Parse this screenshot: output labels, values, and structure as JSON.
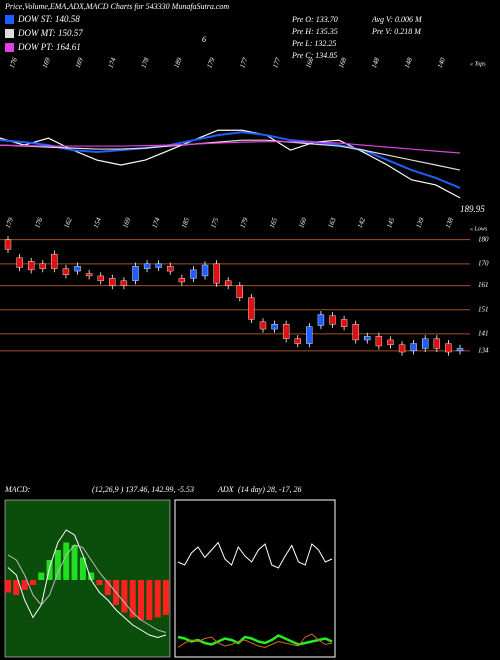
{
  "header": {
    "title": "Price,Volume,EMA,ADX,MACD Charts for 543330 MunafaSutra.com",
    "stats": [
      "Pre   O: 133.70",
      "Pre   H: 135.35",
      "Pre   L: 132.25",
      "Pre   C: 134.85",
      "Avg  V: 0.006  M",
      "Pre  V: 0.218 M"
    ],
    "marker": "6"
  },
  "chart_data": [
    {
      "type": "line",
      "ylim": [
        125,
        235
      ],
      "series": [
        {
          "color": "#ffffff",
          "values": [
            177.7,
            172.6,
            177.7,
            169,
            161.6,
            158,
            161.6,
            168.9,
            176.2,
            183.5,
            183.5,
            179.9,
            168.9,
            174.8,
            176.2,
            167.5,
            158,
            147.1,
            143.4,
            133.9
          ]
        },
        {
          "name": "DOW ST: 140.58",
          "color": "#1f5fff",
          "values": [
            176.2,
            174.8,
            172.6,
            168.9,
            167.5,
            168.9,
            170.4,
            172.6,
            176.2,
            179.9,
            182.1,
            179.9,
            176.2,
            174.8,
            172.6,
            168.9,
            161.6,
            154.3,
            148.5,
            141.2
          ]
        },
        {
          "name": "DOW MT: 150.57",
          "color": "#dddddd",
          "values": [
            172.6,
            171.9,
            171.1,
            170.4,
            169.7,
            169.7,
            170.4,
            171.9,
            173.3,
            174.8,
            176.2,
            176.2,
            174.8,
            173.3,
            171.9,
            168.9,
            165.3,
            161.6,
            158,
            154.3
          ]
        },
        {
          "name": "DOW PT: 164.61",
          "color": "#e040e0",
          "values": [
            172.6,
            172.2,
            171.9,
            171.9,
            171.9,
            171.9,
            172.2,
            172.6,
            173.3,
            174.1,
            174.8,
            175.1,
            175.1,
            174.8,
            174.1,
            172.6,
            171.1,
            169.7,
            168.2,
            166.8
          ]
        }
      ],
      "tops": [
        176,
        169,
        169,
        174,
        178,
        189,
        179,
        177,
        177,
        166,
        168,
        148,
        148,
        140
      ],
      "tops_label": "« Tops",
      "lows": [
        179,
        176,
        162,
        154,
        169,
        174,
        185,
        175,
        179,
        165,
        160,
        163,
        142,
        145,
        139,
        138
      ],
      "lows_label": "« Lows",
      "annotation": "189.95"
    },
    {
      "type": "candlestick",
      "ylim": [
        124,
        184
      ],
      "yticks": [
        180,
        170,
        161,
        151,
        141,
        134
      ],
      "up_color": "#1f5fff",
      "down_color": "#e01010",
      "grid_color": "#a0522d",
      "open": [
        180,
        172.5,
        171,
        170,
        174,
        168,
        167,
        166,
        165,
        164,
        163,
        163,
        168,
        168.5,
        169,
        164,
        164,
        165,
        170,
        163,
        161,
        156,
        146,
        143,
        145,
        139,
        137,
        144.5,
        148.5,
        147,
        145,
        138.5,
        140,
        138.5,
        136.5,
        134,
        135,
        139,
        137,
        134
      ],
      "close": [
        176,
        168.5,
        167.5,
        168,
        168,
        165.5,
        169,
        165,
        163,
        161,
        161,
        169,
        170,
        170,
        167,
        162.5,
        167.5,
        169.5,
        162,
        161,
        156,
        147,
        143,
        145,
        139,
        137,
        144,
        149,
        145,
        144,
        138.5,
        140,
        136,
        136.5,
        133.5,
        137,
        139,
        135,
        133.5,
        135
      ],
      "high": [
        181.5,
        174,
        172.5,
        171.5,
        175.5,
        169.5,
        170.5,
        167.5,
        166.5,
        165.5,
        164.5,
        170.5,
        171.5,
        171.5,
        170.5,
        165.5,
        169,
        171,
        171.5,
        164.5,
        162.5,
        157.5,
        147.5,
        146.5,
        146.5,
        140.5,
        145.5,
        150.5,
        150,
        148.5,
        146.5,
        141.5,
        141.5,
        140,
        138,
        138.5,
        140.5,
        140.5,
        138.5,
        136.5
      ],
      "low": [
        174.5,
        167,
        166,
        166.5,
        166.5,
        164,
        165.5,
        163.5,
        161.5,
        159.5,
        159.5,
        161.5,
        166.5,
        167,
        165.5,
        161,
        162.5,
        163.5,
        160.5,
        159.5,
        154.5,
        145.5,
        141.5,
        141.5,
        137.5,
        135.5,
        135.5,
        143,
        143.5,
        142.5,
        137,
        137,
        134.5,
        135,
        132,
        132.5,
        133.5,
        133.5,
        132,
        132.5
      ]
    },
    {
      "type": "macd",
      "label": "MACD:",
      "params": "(12,26,9 ) 137.46, 142.99, -5.53",
      "ylim": [
        -3,
        3
      ],
      "up_color": "#22dd22",
      "down_color": "#ff2020",
      "histogram": [
        -0.5,
        -0.6,
        -0.4,
        -0.2,
        0.3,
        0.8,
        1.2,
        1.5,
        1.4,
        0.9,
        0.3,
        -0.2,
        -0.6,
        -1.0,
        -1.3,
        -1.5,
        -1.6,
        -1.6,
        -1.5,
        -1.4
      ],
      "series": [
        {
          "color": "#ffffff",
          "values": [
            0.5,
            0.2,
            -0.8,
            -1.5,
            -1.0,
            0.5,
            1.5,
            2.0,
            1.8,
            1.0,
            0,
            -0.5,
            -0.8,
            -1.2,
            -1.5,
            -1.8,
            -2.0,
            -2.2,
            -2.3,
            -2.2
          ]
        },
        {
          "color": "#bbbbbb",
          "values": [
            1.0,
            0.8,
            0.2,
            -0.6,
            -1.0,
            -0.6,
            0.3,
            1.0,
            1.4,
            1.3,
            0.8,
            0.3,
            -0.1,
            -0.5,
            -0.9,
            -1.3,
            -1.6,
            -1.8,
            -2.0,
            -2.1
          ]
        }
      ]
    },
    {
      "type": "adx",
      "label": "ADX",
      "params": "(14 day) 28, -17, 26",
      "ylim": [
        0,
        100
      ],
      "series": [
        {
          "color": "#ffffff",
          "values": [
            62,
            60,
            68,
            72,
            65,
            70,
            75,
            64,
            60,
            72,
            66,
            62,
            70,
            74,
            60,
            58,
            66,
            73,
            62,
            60,
            74,
            70,
            62,
            64
          ]
        },
        {
          "color": "#22ee22",
          "values": [
            12,
            11,
            9,
            10,
            8,
            7,
            9,
            11,
            10,
            8,
            12,
            11,
            9,
            8,
            10,
            13,
            11,
            9,
            7,
            8,
            9,
            10,
            11,
            9
          ]
        },
        {
          "color": "#d2691e",
          "values": [
            5,
            8,
            10,
            9,
            11,
            12,
            8,
            6,
            7,
            9,
            10,
            8,
            6,
            5,
            7,
            9,
            8,
            7,
            6,
            12,
            14,
            10,
            7,
            8
          ]
        }
      ]
    }
  ]
}
